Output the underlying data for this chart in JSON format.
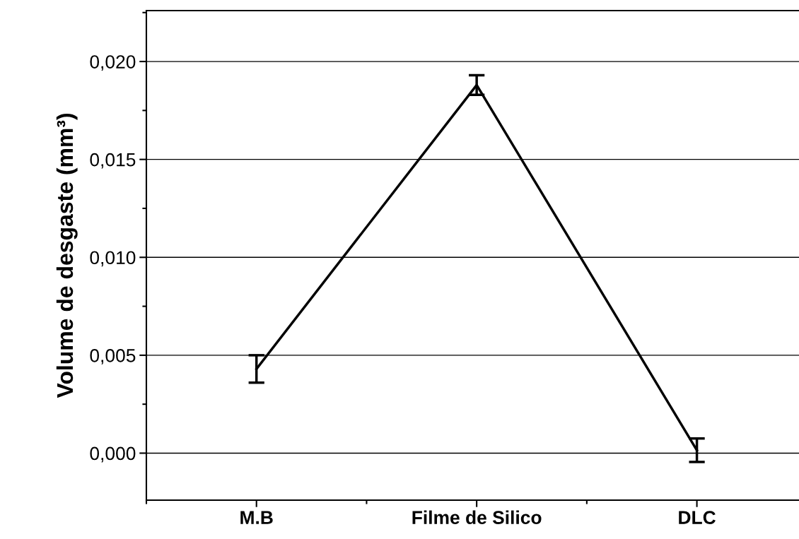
{
  "chart_data": {
    "type": "line",
    "ylabel": "Volume de desgaste (mm³)",
    "categories": [
      "M.B",
      "Filme de Silico",
      "DLC"
    ],
    "series": [
      {
        "color": "#000000",
        "values": [
          0.0043,
          0.0188,
          0.00015
        ],
        "errors": [
          0.0007,
          0.0005,
          0.0006
        ]
      }
    ],
    "ylim": [
      -0.0024,
      0.0226
    ],
    "yticks": [
      {
        "value": 0,
        "label": "0,000"
      },
      {
        "value": 0.005,
        "label": "0,005"
      },
      {
        "value": 0.01,
        "label": "0,010"
      },
      {
        "value": 0.015,
        "label": "0,015"
      },
      {
        "value": 0.02,
        "label": "0,020"
      }
    ],
    "grid": "y",
    "marker": "none",
    "line_style": "solid",
    "legend": false
  }
}
